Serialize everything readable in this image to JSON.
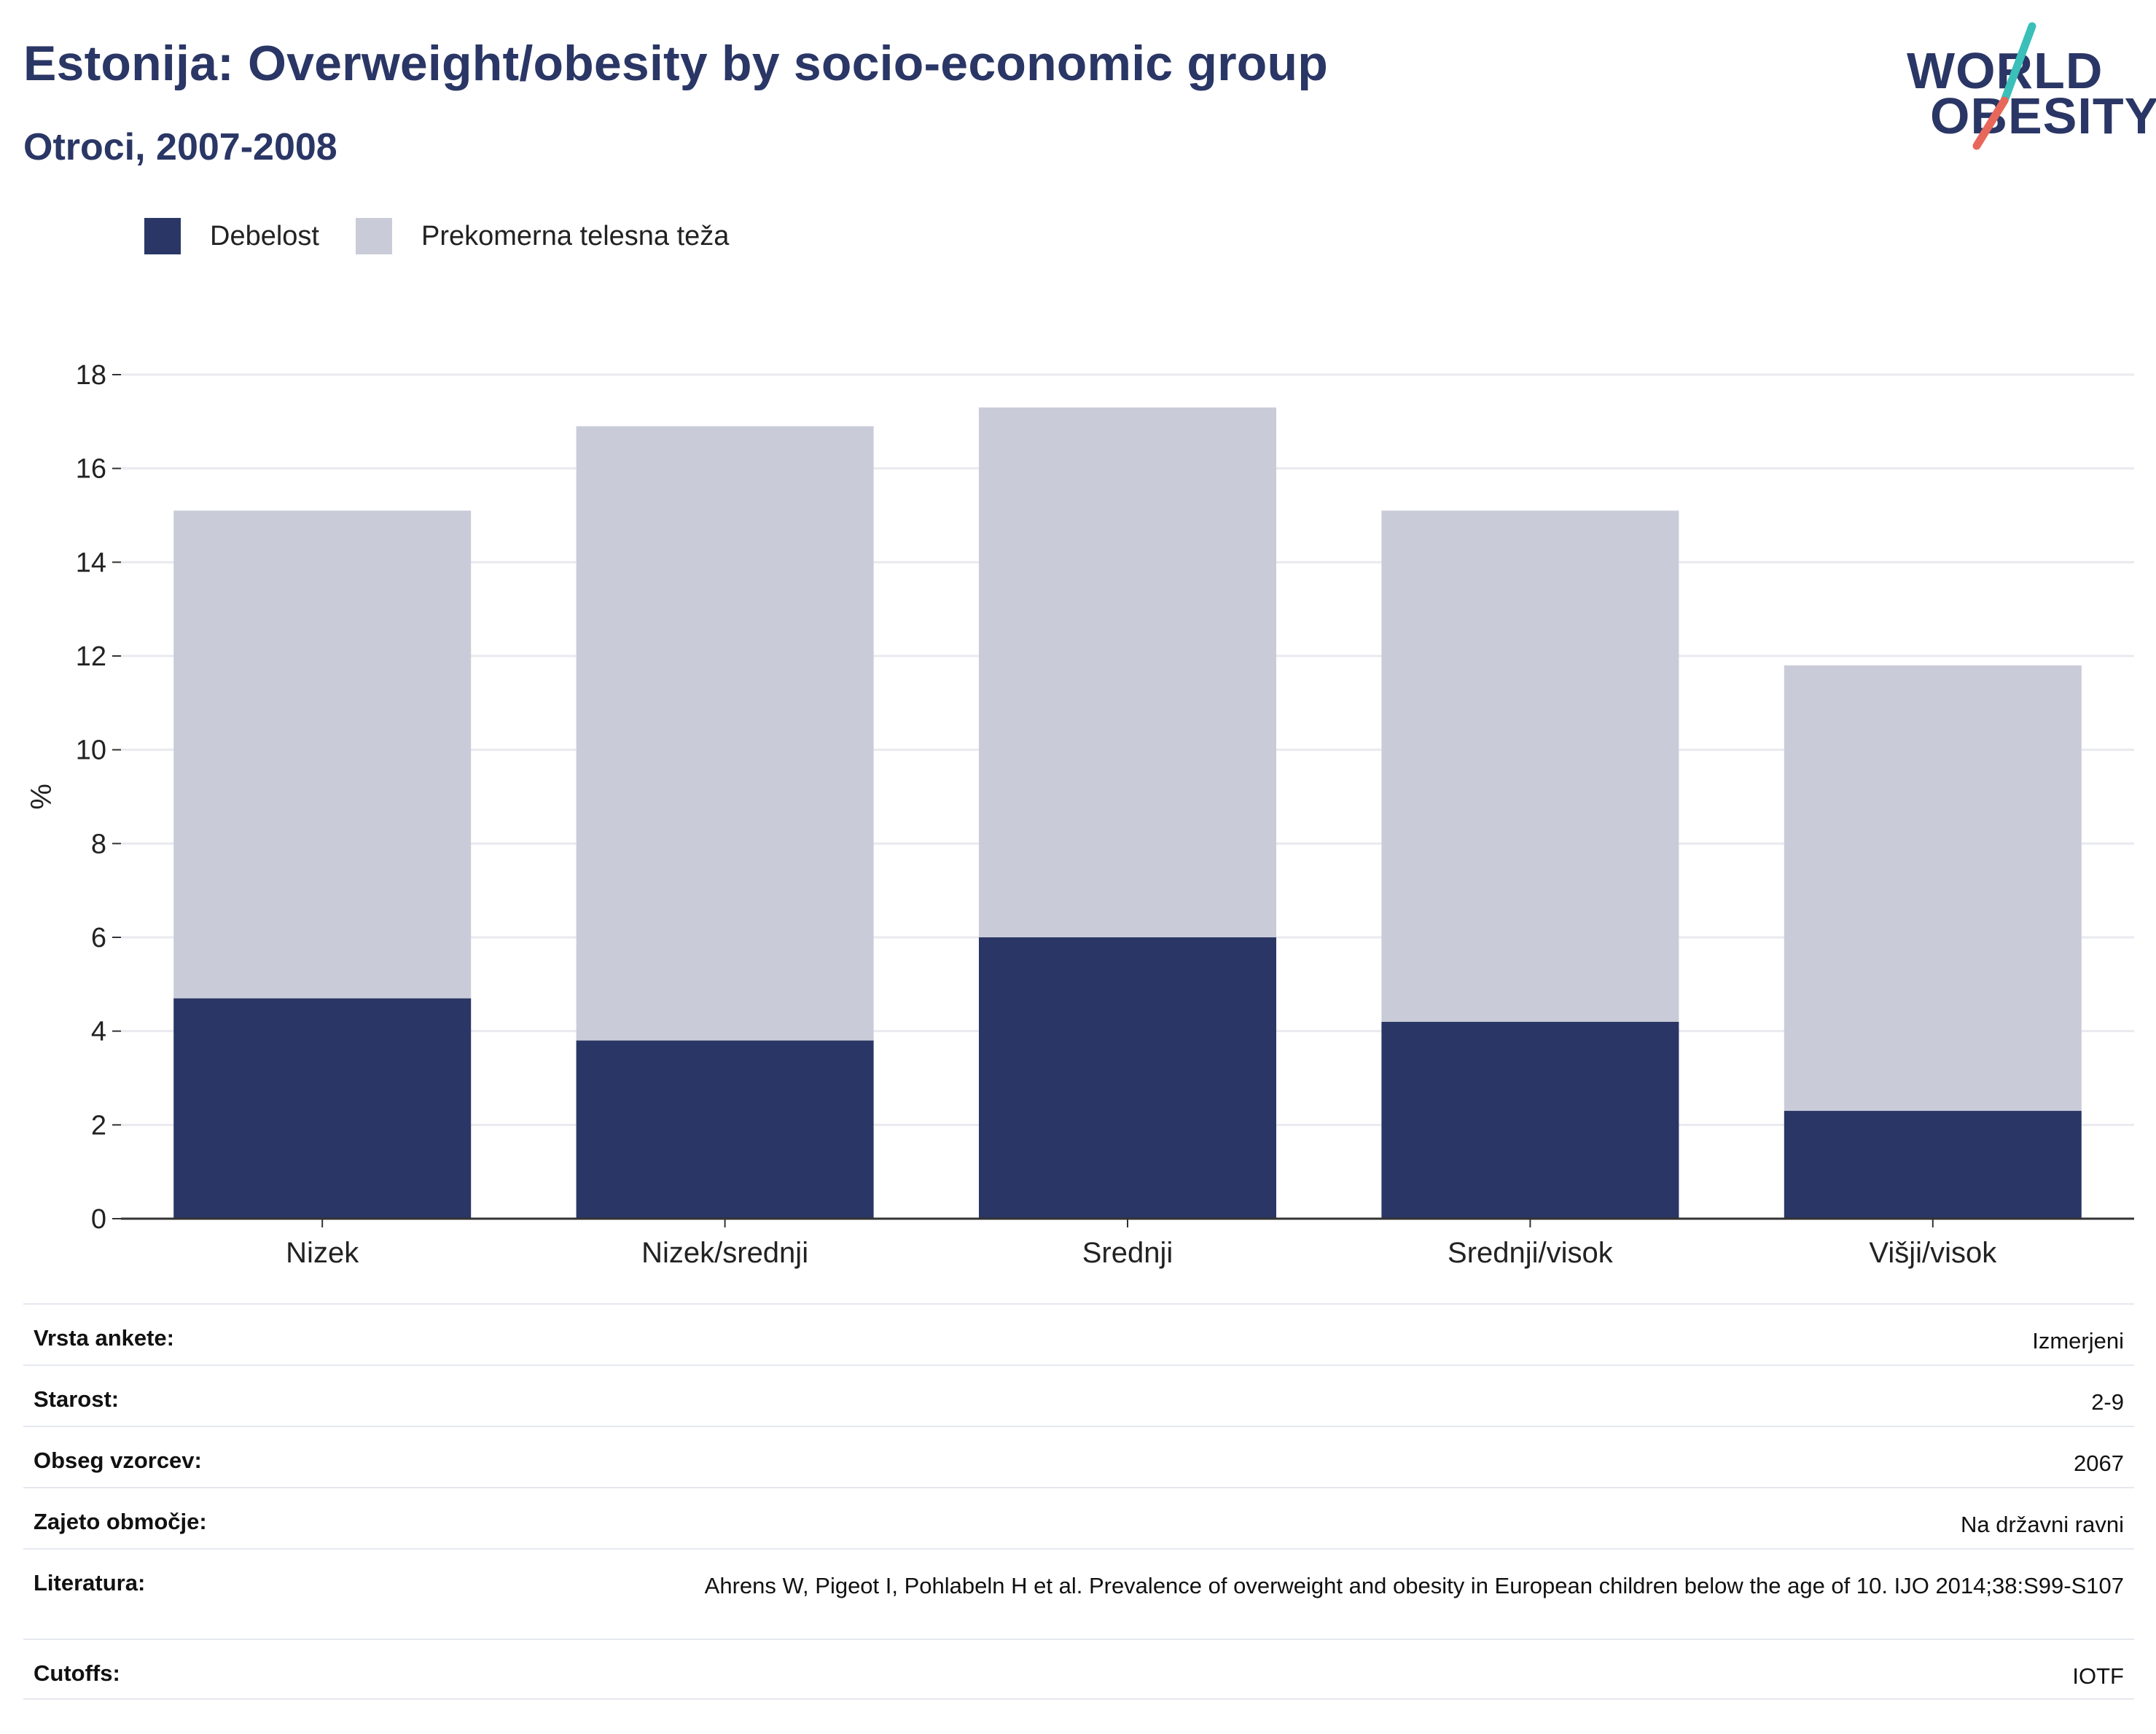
{
  "header": {
    "title": "Estonija: Overweight/obesity by socio-economic group",
    "subtitle": "Otroci, 2007-2008"
  },
  "logo": {
    "line1": "WORLD",
    "line2": "OBESITY",
    "colors": {
      "text": "#2a3665",
      "slash_top": "#3bbfb9",
      "slash_bottom": "#e8675b"
    }
  },
  "legend": [
    {
      "label": "Debelost",
      "color": "#2a3665"
    },
    {
      "label": "Prekomerna telesna teža",
      "color": "#c9ccd8"
    }
  ],
  "chart_data": {
    "type": "bar",
    "stacked": true,
    "categories": [
      "Nizek",
      "Nizek/srednji",
      "Srednji",
      "Srednji/visok",
      "Višji/visok"
    ],
    "series": [
      {
        "name": "Debelost",
        "color": "#2a3665",
        "values": [
          4.7,
          3.8,
          6.0,
          4.2,
          2.3
        ]
      },
      {
        "name": "Prekomerna telesna teža",
        "color": "#c9ccd8",
        "values": [
          10.4,
          13.1,
          11.3,
          10.9,
          9.5
        ]
      }
    ],
    "ylabel": "%",
    "ylim": [
      0,
      18
    ],
    "yticks": [
      0,
      2,
      4,
      6,
      8,
      10,
      12,
      14,
      16,
      18
    ],
    "grid": true,
    "legend_position": "top-left"
  },
  "info_table": [
    {
      "key": "Vrsta ankete:",
      "value": "Izmerjeni"
    },
    {
      "key": "Starost:",
      "value": "2-9"
    },
    {
      "key": "Obseg vzorcev:",
      "value": "2067"
    },
    {
      "key": "Zajeto območje:",
      "value": "Na državni ravni"
    },
    {
      "key": "Literatura:",
      "value": "Ahrens W, Pigeot I, Pohlabeln H et al. Prevalence of overweight and obesity in European children below the age of 10. IJO 2014;38:S99-S107"
    },
    {
      "key": "Cutoffs:",
      "value": "IOTF"
    }
  ]
}
